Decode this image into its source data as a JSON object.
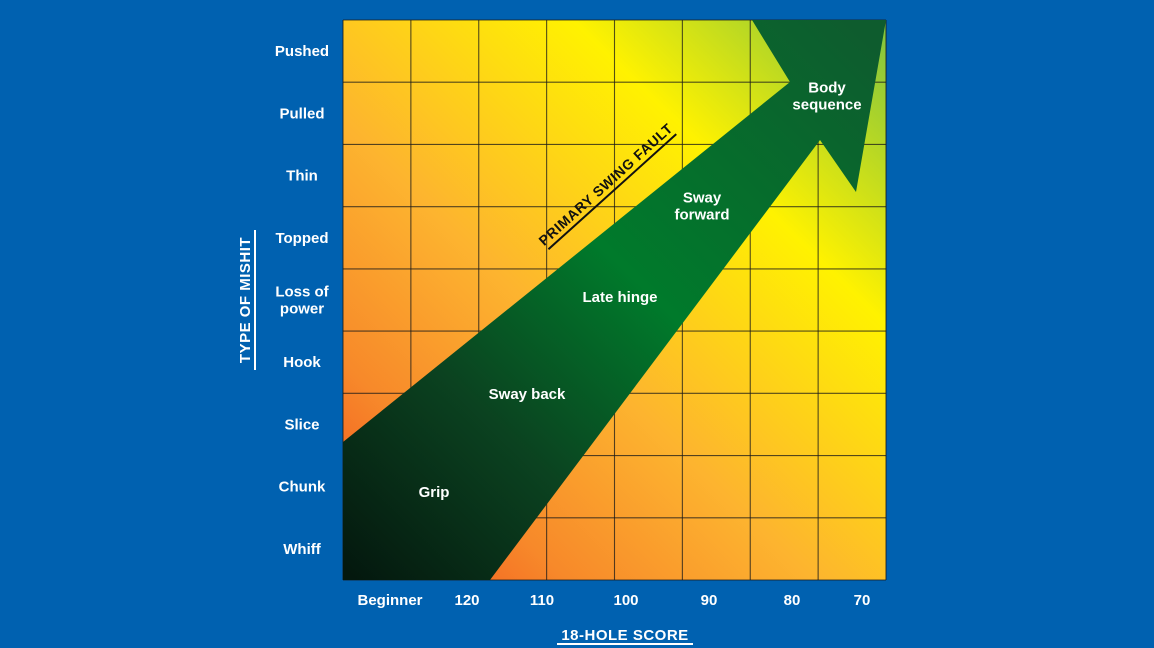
{
  "chart_data": {
    "type": "heatmap",
    "title": "",
    "xlabel": "18-HOLE SCORE",
    "ylabel": "TYPE OF MISHIT",
    "x_categories": [
      "Beginner",
      "120",
      "110",
      "100",
      "90",
      "80",
      "70"
    ],
    "y_categories": [
      "Pushed",
      "Pulled",
      "Thin",
      "Topped",
      "Loss of\npower",
      "Hook",
      "Slice",
      "Chunk",
      "Whiff"
    ],
    "grid": true,
    "arrow_label": "PRIMARY SWING FAULT",
    "zones": [
      {
        "label": "Grip"
      },
      {
        "label": "Sway back"
      },
      {
        "label": "Late hinge"
      },
      {
        "label": "Sway\nforward"
      },
      {
        "label": "Body\nsequence"
      }
    ],
    "colors": {
      "background": "#0061b0",
      "heat_low": "#f04a1e",
      "heat_mid": "#fdb42f",
      "heat_high": "#fff200",
      "heat_top": "#7cc242",
      "arrow_dark": "#04180e",
      "arrow_light": "#007a2b",
      "text": "#ffffff"
    }
  }
}
